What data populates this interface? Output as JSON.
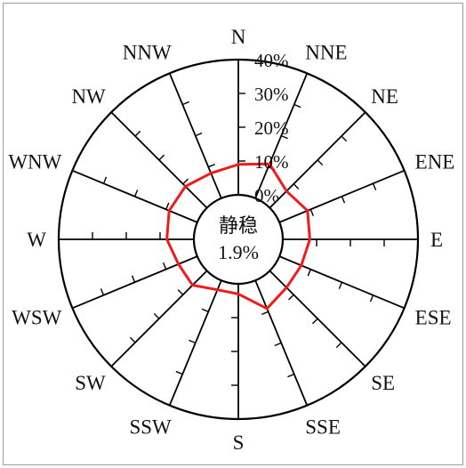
{
  "chart_data": {
    "type": "radar",
    "directions": [
      "N",
      "NNE",
      "NE",
      "ENE",
      "E",
      "ESE",
      "SE",
      "SSE",
      "S",
      "SSW",
      "SW",
      "WSW",
      "W",
      "WNW",
      "NW",
      "NNW"
    ],
    "values": [
      9,
      11,
      7,
      9,
      8,
      7,
      7,
      9,
      3,
      3,
      6,
      6,
      8,
      9,
      9,
      8
    ],
    "radial_ticks": [
      "0%",
      "10%",
      "20%",
      "30%",
      "40%"
    ],
    "rlim": [
      0,
      40
    ],
    "calm": {
      "label": "静稳",
      "value": "1.9%"
    },
    "grid": true,
    "colors": {
      "series": "#ee1c1c",
      "axis": "#000000"
    }
  }
}
